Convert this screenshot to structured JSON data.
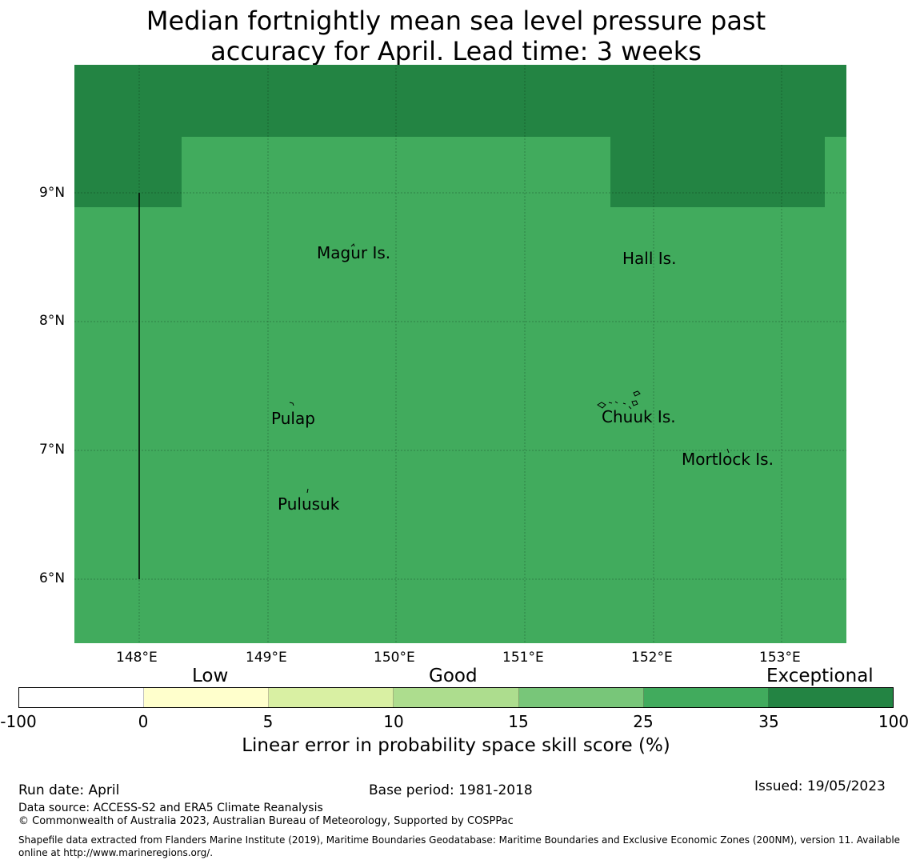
{
  "title": {
    "line1": "Median fortnightly mean sea level pressure past",
    "line2": "accuracy for April. Lead time: 3 weeks"
  },
  "map": {
    "x_ticks": [
      "148°E",
      "149°E",
      "150°E",
      "151°E",
      "152°E",
      "153°E"
    ],
    "y_ticks": [
      "9°N",
      "8°N",
      "7°N",
      "6°N"
    ],
    "places": [
      "Magur Is.",
      "Hall Is.",
      "Pulap",
      "Chuuk Is.",
      "Mortlock Is.",
      "Pulusuk"
    ],
    "colors": {
      "good_high": "#41ab5d",
      "exceptional": "#238443"
    }
  },
  "legend": {
    "categories": [
      "Low",
      "Good",
      "Exceptional"
    ],
    "bins": [
      "-100",
      "0",
      "5",
      "10",
      "15",
      "25",
      "35",
      "100"
    ],
    "colors": [
      "#ffffff",
      "#ffffcc",
      "#d9f0a3",
      "#addd8e",
      "#78c679",
      "#41ab5d",
      "#238443"
    ],
    "label": "Linear error in probability space skill score (%)"
  },
  "footer": {
    "run_date": "Run date: April",
    "base_period": "Base period: 1981-2018",
    "issued": "Issued: 19/05/2023",
    "data_source": "Data source: ACCESS-S2 and ERA5 Climate Reanalysis",
    "copyright": "© Commonwealth of Australia 2023, Australian Bureau of Meteorology, Supported by COSPPac",
    "shapefile": "Shapefile data extracted from Flanders Marine Institute (2019), Maritime Boundaries Geodatabase: Maritime Boundaries and Exclusive Economic Zones (200NM), version 11. Available online at http://www.marineregions.org/."
  }
}
